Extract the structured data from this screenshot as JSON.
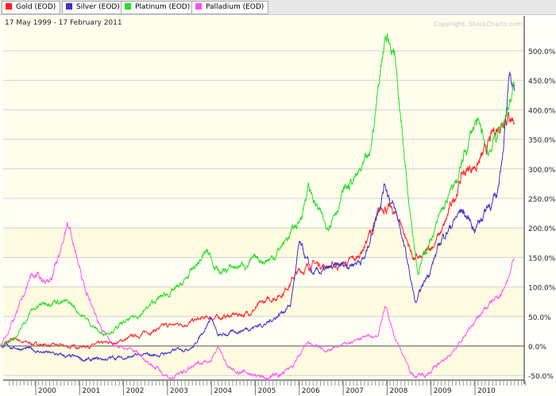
{
  "chart_data": {
    "type": "line",
    "title": "17 May 1999 - 17 February 2011",
    "watermark": "Copyright, StockCharts.com",
    "xlabel": "",
    "ylabel": "",
    "ylim": [
      -55,
      540
    ],
    "yticks": [
      -50,
      0,
      50,
      100,
      150,
      200,
      250,
      300,
      350,
      400,
      450,
      500
    ],
    "ytick_labels": [
      "-50.0%",
      "0.0%",
      "50.0%",
      "100.0%",
      "150.0%",
      "200.0%",
      "250.0%",
      "300.0%",
      "350.0%",
      "400.0%",
      "450.0%",
      "500.0%"
    ],
    "xticks": [
      "2000",
      "2001",
      "2002",
      "2003",
      "2004",
      "2005",
      "2006",
      "2007",
      "2008",
      "2009",
      "2010"
    ],
    "legend_position": "top",
    "series": [
      {
        "name": "Gold (EOD)",
        "color": "#ff2020",
        "t": [
          1999.2,
          1999.55,
          1999.8,
          2000.8,
          2001.8,
          2002.8,
          2003.8,
          2004.8,
          2005.6,
          2005.9,
          2006.3,
          2006.8,
          2007.3,
          2007.95,
          2008.3,
          2008.6,
          2008.8,
          2009.3,
          2009.7,
          2010.2,
          2010.7,
          2010.9
        ],
        "v": [
          0,
          12,
          5,
          -2,
          5,
          30,
          45,
          55,
          90,
          120,
          140,
          135,
          145,
          240,
          210,
          150,
          145,
          200,
          290,
          320,
          400,
          390
        ]
      },
      {
        "name": "Silver (EOD)",
        "color": "#4030d0",
        "t": [
          1999.2,
          1999.8,
          2000.8,
          2001.3,
          2001.8,
          2002.8,
          2003.6,
          2004.0,
          2004.15,
          2004.8,
          2005.3,
          2005.8,
          2006.0,
          2006.3,
          2006.8,
          2007.5,
          2007.95,
          2008.3,
          2008.65,
          2009.3,
          2009.7,
          2010.0,
          2010.3,
          2010.5,
          2010.8,
          2010.9
        ],
        "v": [
          0,
          -5,
          -20,
          -25,
          -20,
          -15,
          0,
          50,
          15,
          30,
          40,
          70,
          170,
          120,
          130,
          150,
          280,
          200,
          70,
          190,
          230,
          200,
          240,
          250,
          450,
          430
        ]
      },
      {
        "name": "Platinum (EOD)",
        "color": "#20e020",
        "t": [
          1999.2,
          1999.6,
          1999.9,
          2000.4,
          2000.8,
          2001.1,
          2001.5,
          2001.8,
          2002.3,
          2002.8,
          2003.3,
          2003.9,
          2004.2,
          2004.8,
          2005.4,
          2006.0,
          2006.2,
          2006.6,
          2007.0,
          2007.6,
          2007.96,
          2008.2,
          2008.4,
          2008.7,
          2009.1,
          2009.6,
          2010.0,
          2010.3,
          2010.6,
          2010.9
        ],
        "v": [
          0,
          20,
          60,
          80,
          70,
          50,
          20,
          30,
          50,
          80,
          100,
          160,
          125,
          140,
          150,
          210,
          270,
          200,
          260,
          310,
          540,
          480,
          320,
          130,
          200,
          280,
          380,
          330,
          370,
          440
        ]
      },
      {
        "name": "Palladium (EOD)",
        "color": "#ff50ff",
        "t": [
          1999.2,
          1999.6,
          1999.9,
          2000.3,
          2000.55,
          2000.72,
          2001.1,
          2001.5,
          2001.8,
          2002.3,
          2002.8,
          2003.1,
          2003.6,
          2004.0,
          2004.15,
          2004.4,
          2004.8,
          2005.3,
          2005.7,
          2006.0,
          2006.2,
          2006.6,
          2007.3,
          2007.8,
          2007.95,
          2008.2,
          2008.6,
          2008.8,
          2009.3,
          2009.8,
          2010.2,
          2010.6,
          2010.9
        ],
        "v": [
          0,
          60,
          120,
          110,
          150,
          215,
          100,
          30,
          0,
          -10,
          -40,
          -55,
          -35,
          -20,
          0,
          -40,
          -45,
          -55,
          -45,
          -20,
          5,
          -10,
          10,
          20,
          70,
          10,
          -50,
          -50,
          -25,
          20,
          60,
          90,
          145
        ]
      }
    ]
  }
}
